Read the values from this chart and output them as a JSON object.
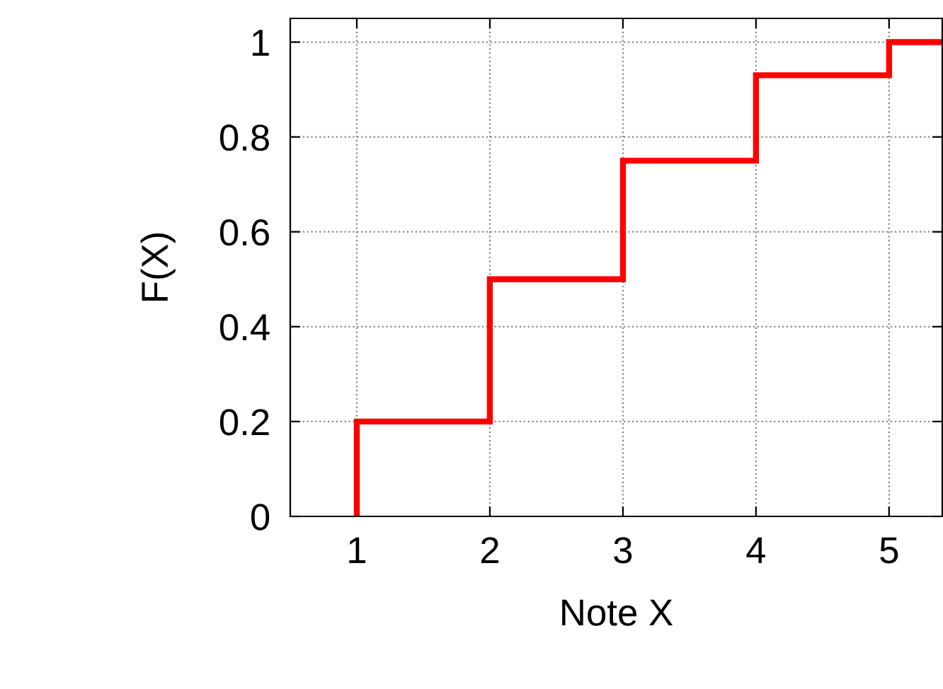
{
  "chart_data": {
    "type": "step",
    "xlabel": "Note X",
    "ylabel": "F(X)",
    "x": [
      1,
      1,
      2,
      3,
      4,
      5,
      5.4
    ],
    "series": [
      {
        "color": "#ff0000",
        "values": [
          0,
          0.2,
          0.5,
          0.75,
          0.93,
          1.0,
          1.0
        ]
      }
    ],
    "xlim": [
      0.5,
      5.4
    ],
    "xticks": [
      1,
      2,
      3,
      4,
      5
    ],
    "ylim": [
      0,
      1.05
    ],
    "yticks": [
      0,
      0.2,
      0.4,
      0.6,
      0.8,
      1
    ],
    "grid": true,
    "line_style": "solid"
  }
}
